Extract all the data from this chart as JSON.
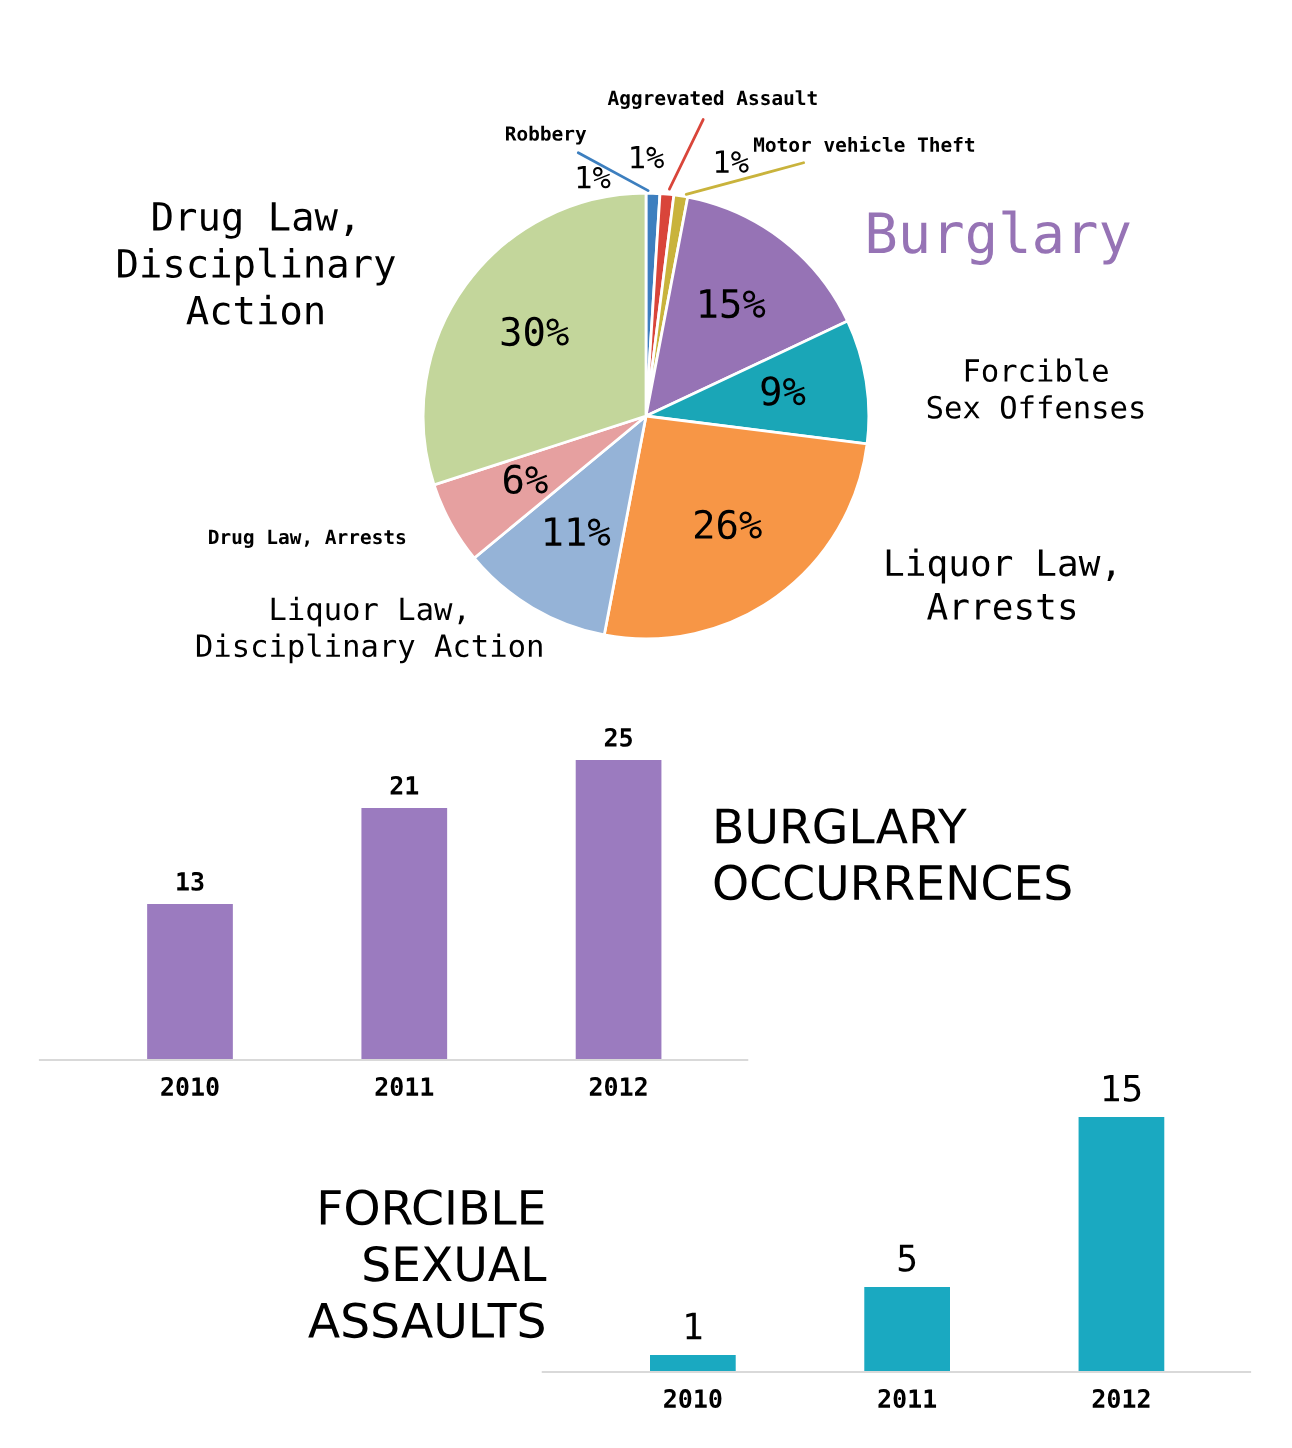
{
  "chart_data": [
    {
      "type": "pie",
      "categories": [
        "Robbery",
        "Aggrevated Assault",
        "Motor vehicle Theft",
        "Burglary",
        "Forcible\nSex Offenses",
        "Liquor Law,\nArrests",
        "Liquor Law,\nDisciplinary Action",
        "Drug Law, Arrests",
        "Drug Law,\nDisciplinary\nAction"
      ],
      "values": [
        1,
        1,
        1,
        15,
        9,
        26,
        11,
        6,
        30
      ],
      "colors": [
        "#3d7fbf",
        "#d9453a",
        "#c9b33c",
        "#9673b5",
        "#1aa6b7",
        "#f79646",
        "#95b3d7",
        "#e6a0a0",
        "#c3d69b"
      ],
      "value_labels": [
        "1%",
        "1%",
        "1%",
        "15%",
        "9%",
        "26%",
        "11%",
        "6%",
        "30%"
      ]
    },
    {
      "type": "bar",
      "title": "BURGLARY\nOCCURRENCES",
      "categories": [
        "2010",
        "2011",
        "2012"
      ],
      "values": [
        13,
        21,
        25
      ],
      "color": "#9b7bbf",
      "data_labels": true
    },
    {
      "type": "bar",
      "title": "FORCIBLE\nSEXUAL\nASSAULTS",
      "categories": [
        "2010",
        "2011",
        "2012"
      ],
      "values": [
        1,
        5,
        15
      ],
      "color": "#1aa9c1",
      "data_labels": true
    }
  ]
}
